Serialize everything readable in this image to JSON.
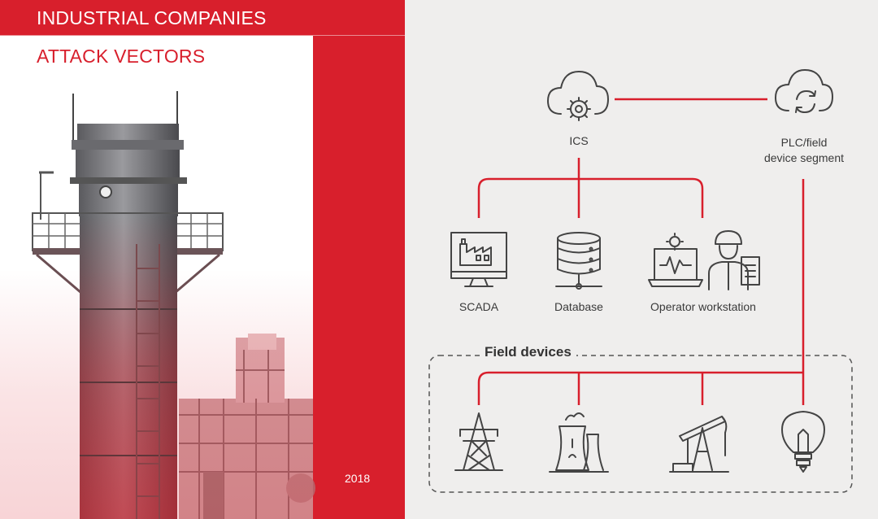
{
  "header": {
    "title": "INDUSTRIAL COMPANIES",
    "subtitle": "ATTACK VECTORS",
    "year": "2018"
  },
  "diagram": {
    "nodes": {
      "ics": "ICS",
      "plc_line1": "PLC/field",
      "plc_line2": "device segment",
      "scada": "SCADA",
      "database": "Database",
      "operator": "Operator workstation"
    },
    "field_devices_title": "Field devices",
    "icons": [
      "cloud-gear-icon",
      "cloud-sync-icon",
      "scada-monitor-icon",
      "database-icon",
      "operator-workstation-icon",
      "power-tower-icon",
      "nuclear-plant-icon",
      "oil-pump-icon",
      "light-bulb-icon"
    ]
  },
  "colors": {
    "accent": "#d81f2c",
    "background": "#efeeed",
    "icon_stroke": "#444444"
  }
}
